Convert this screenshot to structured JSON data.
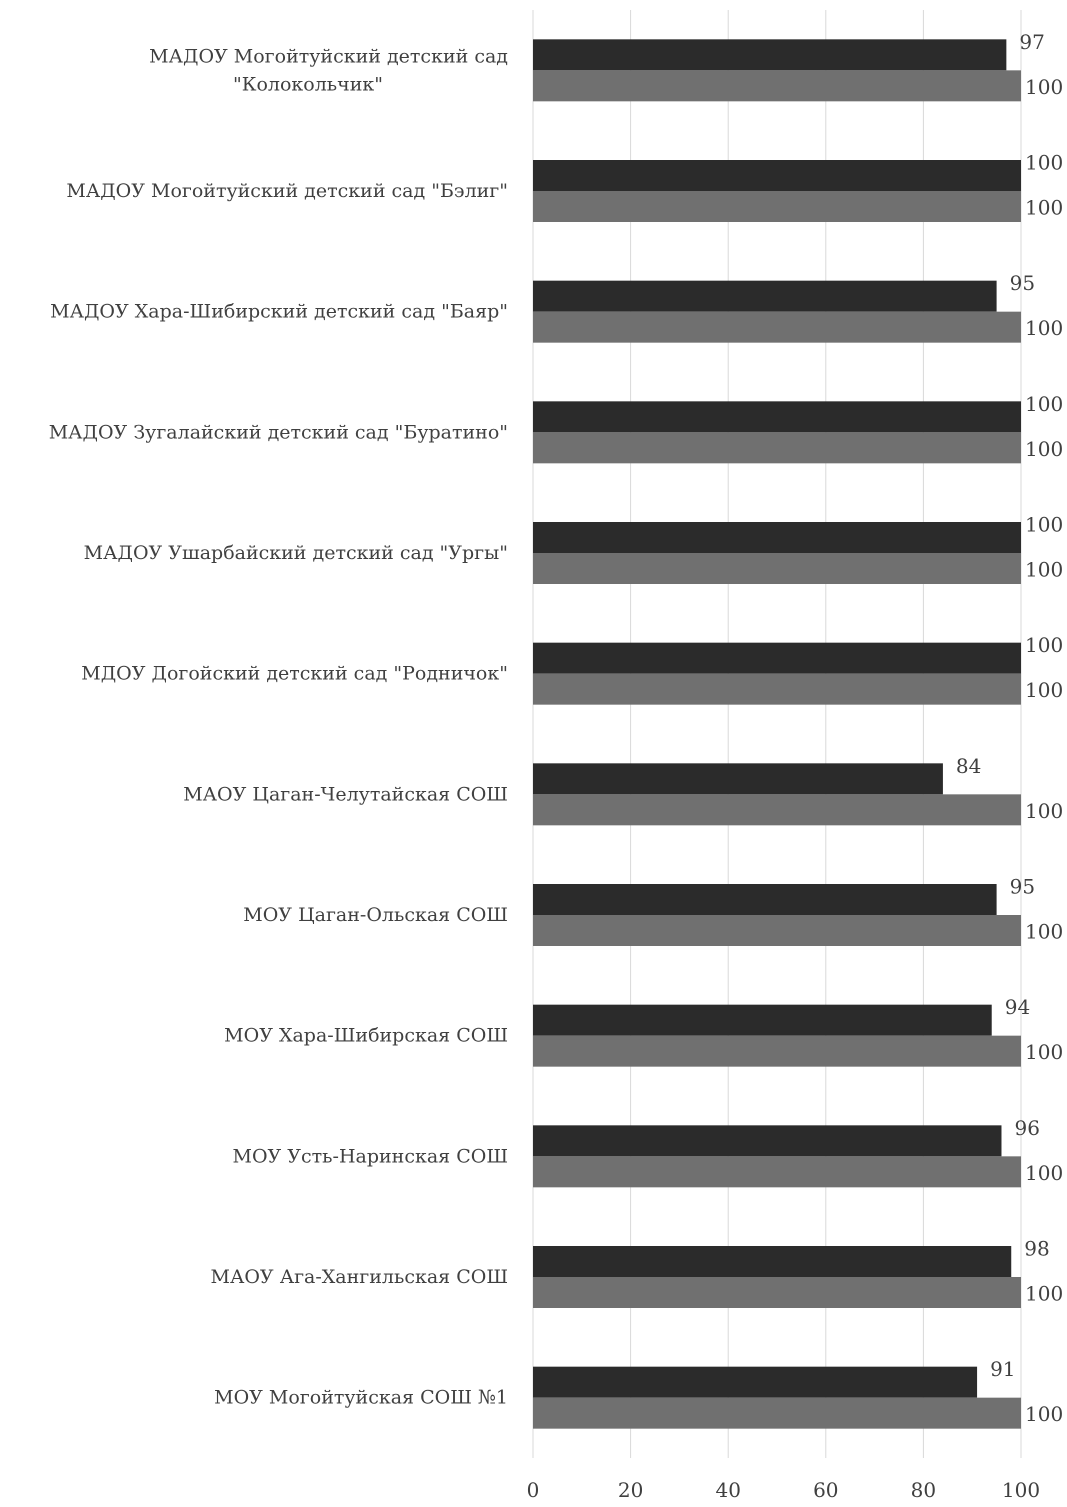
{
  "chart_data": {
    "type": "bar",
    "orientation": "horizontal",
    "categories": [
      [
        "МАДОУ  Могойтуйский детский сад",
        "\"Колокольчик\""
      ],
      [
        "МАДОУ  Могойтуйский детский сад  \"Бэлиг\""
      ],
      [
        "МАДОУ  Хара-Шибирский детский сад  \"Баяр\""
      ],
      [
        "МАДОУ  Зугалайский детский сад  \"Буратино\""
      ],
      [
        "МАДОУ  Ушарбайский детский сад  \"Ургы\""
      ],
      [
        "МДОУ  Догойский детский сад  \"Родничок\""
      ],
      [
        "МАОУ  Цаган-Челутайская СОШ"
      ],
      [
        "МОУ  Цаган-Ольская СОШ"
      ],
      [
        "МОУ  Хара-Шибирская СОШ"
      ],
      [
        "МОУ  Усть-Наринская СОШ"
      ],
      [
        "МАОУ  Ага-Хангильская СОШ"
      ],
      [
        "МОУ  Могойтуйская СОШ №1"
      ]
    ],
    "series": [
      {
        "values": [
          97,
          100,
          95,
          100,
          100,
          100,
          84,
          95,
          94,
          96,
          98,
          91
        ],
        "color": "#2b2b2b"
      },
      {
        "values": [
          100,
          100,
          100,
          100,
          100,
          100,
          100,
          100,
          100,
          100,
          100,
          100
        ],
        "color": "#707070"
      }
    ],
    "xlim": [
      0,
      100
    ],
    "xticks": [
      0,
      20,
      40,
      60,
      80,
      100
    ],
    "grid": true,
    "gridColor": "#d9d9d9",
    "legend": "none"
  }
}
